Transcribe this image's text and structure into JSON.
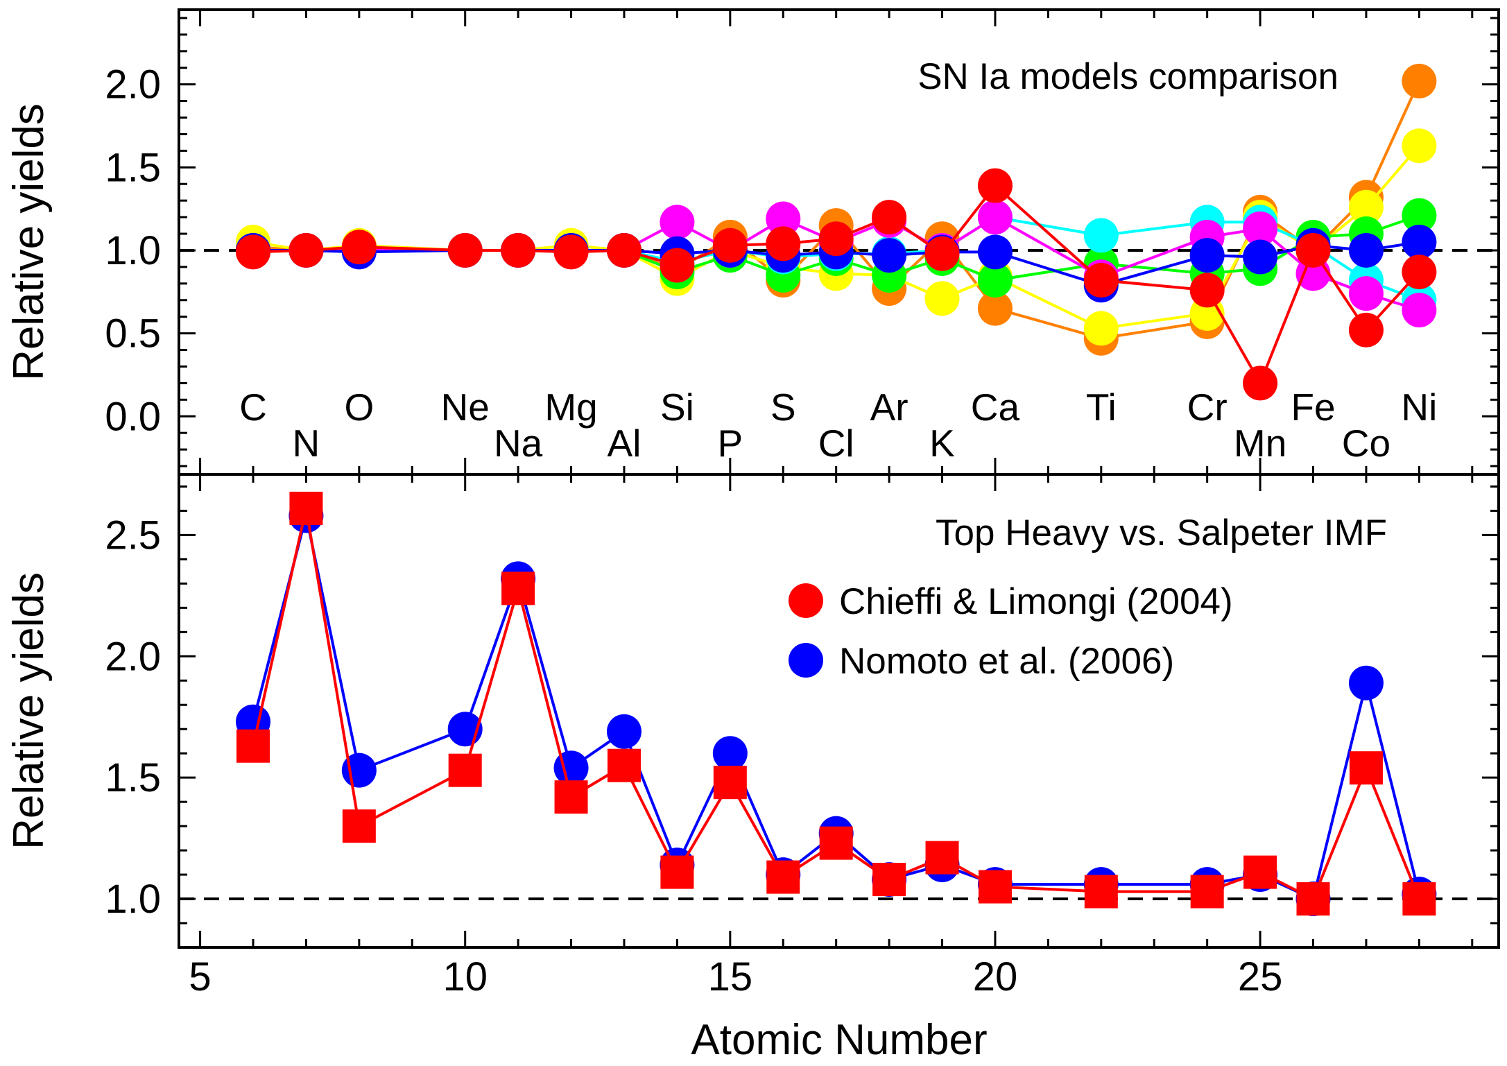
{
  "chart_data": [
    {
      "type": "line",
      "title": "SN Ia models comparison",
      "ylabel": "Relative yields",
      "xlim": [
        4.6,
        29.5
      ],
      "ylim": [
        -0.35,
        2.45
      ],
      "yticks": [
        "0.0",
        "0.5",
        "1.0",
        "1.5",
        "2.0"
      ],
      "reference_line": 1.0,
      "element_labels": [
        {
          "x": 6,
          "text": "C",
          "row": "upper"
        },
        {
          "x": 7,
          "text": "N",
          "row": "lower"
        },
        {
          "x": 8,
          "text": "O",
          "row": "upper"
        },
        {
          "x": 10,
          "text": "Ne",
          "row": "upper"
        },
        {
          "x": 11,
          "text": "Na",
          "row": "lower"
        },
        {
          "x": 12,
          "text": "Mg",
          "row": "upper"
        },
        {
          "x": 13,
          "text": "Al",
          "row": "lower"
        },
        {
          "x": 14,
          "text": "Si",
          "row": "upper"
        },
        {
          "x": 15,
          "text": "P",
          "row": "lower"
        },
        {
          "x": 16,
          "text": "S",
          "row": "upper"
        },
        {
          "x": 17,
          "text": "Cl",
          "row": "lower"
        },
        {
          "x": 18,
          "text": "Ar",
          "row": "upper"
        },
        {
          "x": 19,
          "text": "K",
          "row": "lower"
        },
        {
          "x": 20,
          "text": "Ca",
          "row": "upper"
        },
        {
          "x": 22,
          "text": "Ti",
          "row": "upper"
        },
        {
          "x": 24,
          "text": "Cr",
          "row": "upper"
        },
        {
          "x": 25,
          "text": "Mn",
          "row": "lower"
        },
        {
          "x": 26,
          "text": "Fe",
          "row": "upper"
        },
        {
          "x": 27,
          "text": "Co",
          "row": "lower"
        },
        {
          "x": 28,
          "text": "Ni",
          "row": "upper"
        }
      ],
      "x": [
        6,
        7,
        8,
        10,
        11,
        12,
        13,
        14,
        15,
        16,
        17,
        18,
        19,
        20,
        22,
        24,
        25,
        26,
        27,
        28
      ],
      "series": [
        {
          "color": "#ff8000",
          "marker": "circle",
          "values": [
            1.02,
            1.0,
            1.02,
            1.0,
            1.0,
            1.0,
            1.0,
            0.88,
            1.08,
            0.82,
            1.15,
            0.77,
            1.07,
            0.65,
            0.47,
            0.57,
            1.23,
            1.0,
            1.32,
            2.02
          ]
        },
        {
          "color": "#ffff00",
          "marker": "circle",
          "values": [
            1.05,
            1.0,
            1.03,
            1.0,
            1.0,
            1.03,
            1.0,
            0.83,
            1.0,
            0.9,
            0.86,
            0.85,
            0.71,
            0.84,
            0.53,
            0.62,
            1.2,
            1.0,
            1.26,
            1.63
          ]
        },
        {
          "color": "#00ff00",
          "marker": "circle",
          "values": [
            1.0,
            1.0,
            1.0,
            1.0,
            1.0,
            1.0,
            1.0,
            0.87,
            0.97,
            0.85,
            0.95,
            0.85,
            0.95,
            0.82,
            0.92,
            0.86,
            0.89,
            1.08,
            1.1,
            1.21
          ]
        },
        {
          "color": "#00ffff",
          "marker": "circle",
          "values": [
            1.0,
            1.0,
            1.0,
            1.0,
            1.0,
            1.0,
            1.0,
            0.93,
            1.0,
            0.96,
            0.98,
            0.98,
            1.0,
            1.2,
            1.09,
            1.17,
            1.17,
            1.03,
            0.82,
            0.7
          ]
        },
        {
          "color": "#ff00ff",
          "marker": "circle",
          "values": [
            1.0,
            1.0,
            1.0,
            1.0,
            1.0,
            1.0,
            1.0,
            1.17,
            1.0,
            1.19,
            1.05,
            1.18,
            1.0,
            1.2,
            0.84,
            1.08,
            1.13,
            0.86,
            0.74,
            0.64
          ]
        },
        {
          "color": "#0000ff",
          "marker": "circle",
          "values": [
            1.0,
            1.0,
            0.99,
            1.0,
            1.0,
            1.0,
            1.0,
            0.98,
            1.0,
            0.97,
            0.99,
            0.97,
            0.99,
            0.99,
            0.79,
            0.97,
            0.96,
            1.03,
            1.0,
            1.05
          ]
        },
        {
          "color": "#ff0000",
          "marker": "circle",
          "values": [
            0.99,
            1.0,
            1.02,
            1.0,
            1.0,
            0.99,
            1.0,
            0.91,
            1.03,
            1.04,
            1.07,
            1.2,
            0.98,
            1.39,
            0.82,
            0.76,
            0.2,
            1.0,
            0.52,
            0.87
          ]
        }
      ]
    },
    {
      "type": "line",
      "title": "Top Heavy vs. Salpeter IMF",
      "xlabel": "Atomic Number",
      "ylabel": "Relative yields",
      "xlim": [
        4.6,
        29.5
      ],
      "ylim": [
        0.8,
        2.75
      ],
      "xticks": [
        "5",
        "10",
        "15",
        "20",
        "25"
      ],
      "yticks": [
        "1.0",
        "1.5",
        "2.0",
        "2.5"
      ],
      "reference_line": 1.0,
      "x": [
        6,
        7,
        8,
        10,
        11,
        12,
        13,
        14,
        15,
        16,
        17,
        18,
        19,
        20,
        22,
        24,
        25,
        26,
        27,
        28
      ],
      "series": [
        {
          "name": "Nomoto et al. (2006)",
          "color": "#0000ff",
          "marker": "circle",
          "values": [
            1.73,
            2.58,
            1.53,
            1.7,
            2.32,
            1.54,
            1.69,
            1.14,
            1.6,
            1.1,
            1.27,
            1.08,
            1.14,
            1.06,
            1.06,
            1.06,
            1.1,
            1.0,
            1.89,
            1.02
          ]
        },
        {
          "name": "Chieffi & Limongi (2004)",
          "color": "#ff0000",
          "marker": "square",
          "values": [
            1.63,
            2.61,
            1.3,
            1.53,
            2.28,
            1.42,
            1.55,
            1.11,
            1.48,
            1.09,
            1.23,
            1.08,
            1.17,
            1.05,
            1.03,
            1.03,
            1.11,
            1.0,
            1.54,
            1.0
          ]
        }
      ],
      "legend": [
        {
          "label": "Chieffi & Limongi (2004)",
          "color": "#ff0000"
        },
        {
          "label": "Nomoto et al. (2006)",
          "color": "#0000ff"
        }
      ]
    }
  ]
}
